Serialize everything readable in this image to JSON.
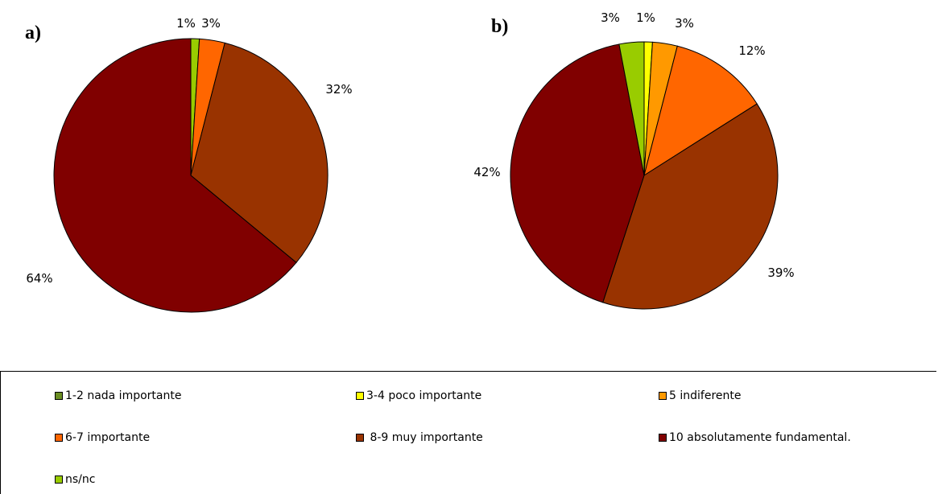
{
  "panels": {
    "a": "a)",
    "b": "b)"
  },
  "colors": {
    "1-2 nada importante": "#6b8e23",
    "3-4 poco importante": "#ffff00",
    "5 indiferente": "#ff9900",
    "6-7 importante": "#ff6600",
    "8-9 muy importante": "#993300",
    "10 absolutamente fundamental.": "#800000",
    "ns/nc": "#99cc00"
  },
  "legend": [
    "1-2 nada importante",
    "3-4 poco importante",
    "5 indiferente",
    "6-7 importante",
    " 8-9 muy importante",
    "10 absolutamente fundamental.",
    "ns/nc"
  ],
  "chart_data": [
    {
      "type": "pie",
      "panel": "a)",
      "categories": [
        "ns/nc",
        "6-7 importante",
        "8-9 muy importante",
        "10 absolutamente fundamental."
      ],
      "values": [
        1,
        3,
        32,
        64
      ],
      "labels": [
        "1%",
        "3%",
        "32%",
        "64%"
      ]
    },
    {
      "type": "pie",
      "panel": "b)",
      "categories": [
        "3-4 poco importante",
        "5 indiferente",
        "6-7 importante",
        "8-9 muy importante",
        "10 absolutamente fundamental.",
        "ns/nc"
      ],
      "values": [
        1,
        3,
        12,
        39,
        42,
        3
      ],
      "labels": [
        "1%",
        "3%",
        "12%",
        "39%",
        "42%",
        "3%"
      ]
    }
  ]
}
